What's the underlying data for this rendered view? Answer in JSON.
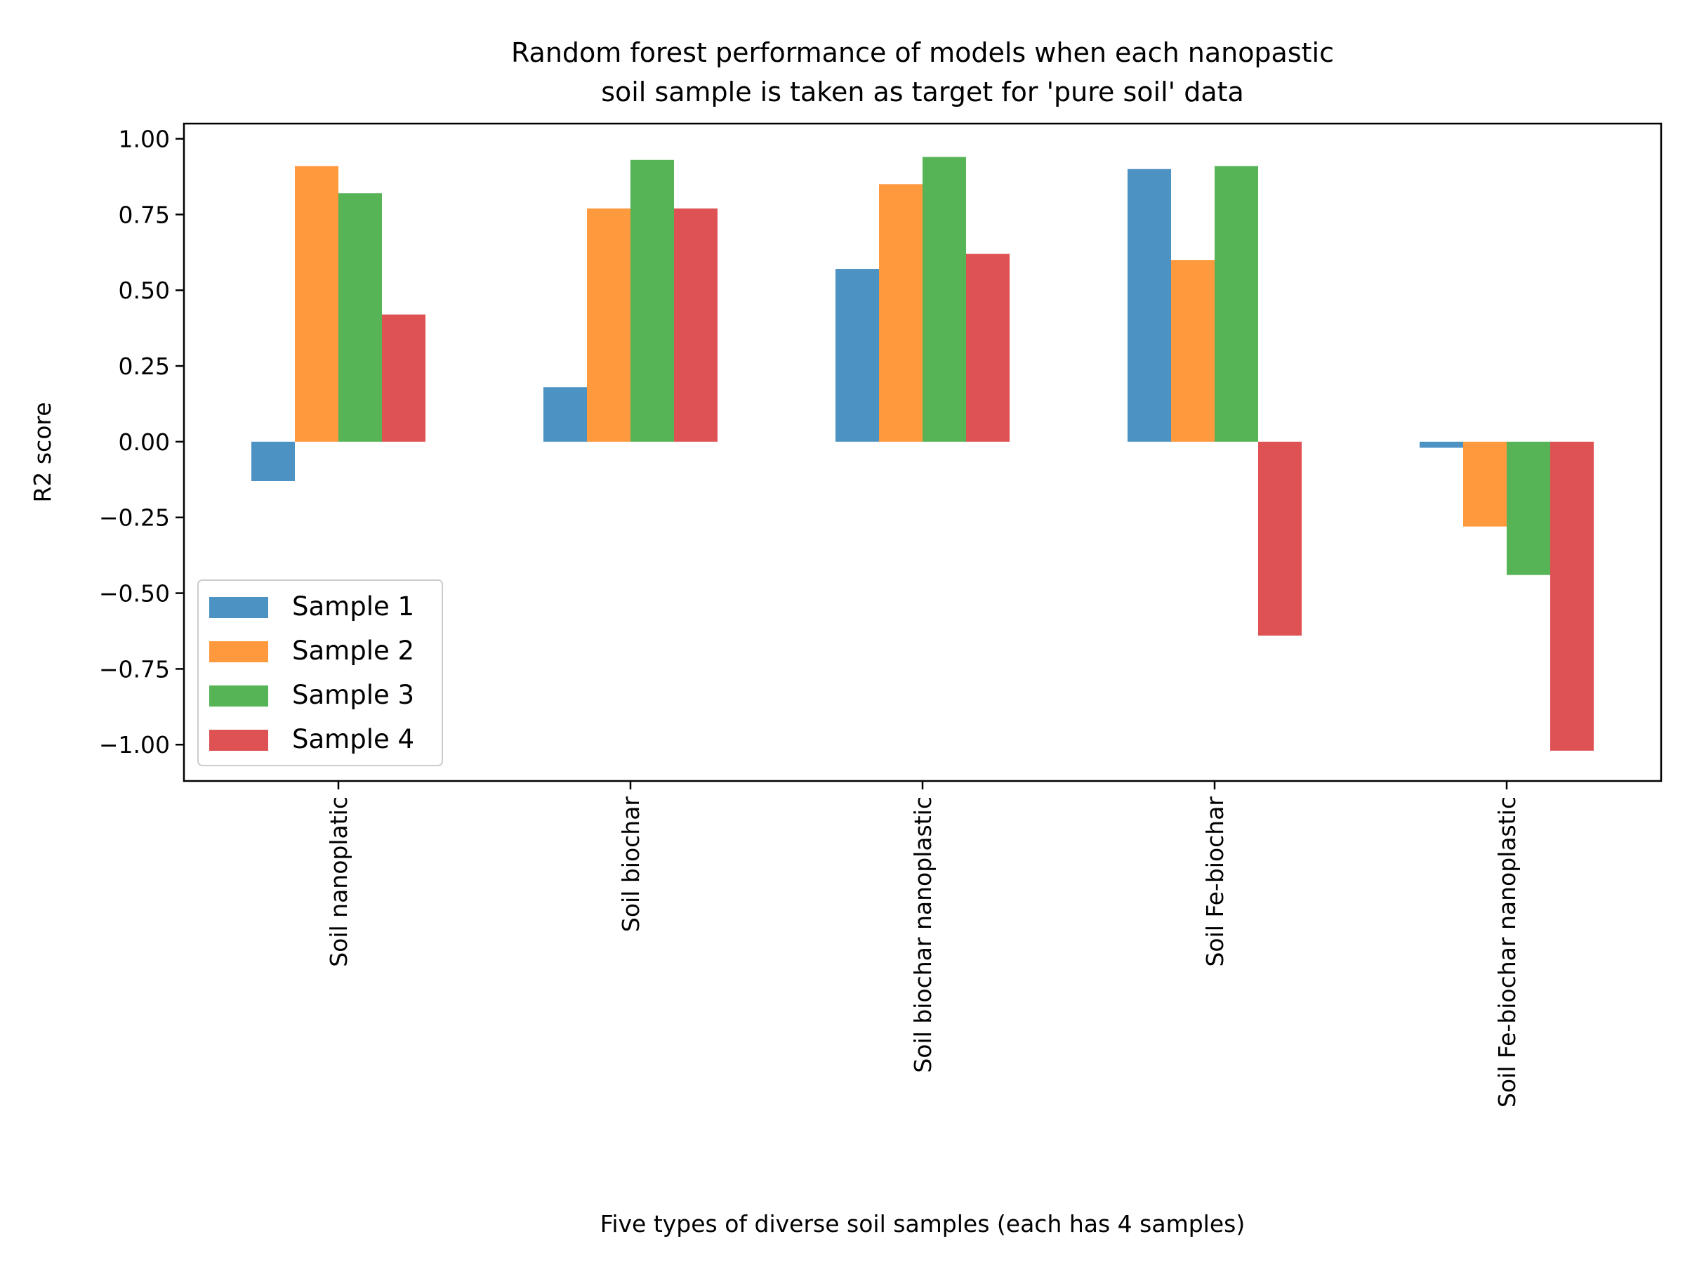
{
  "chart_data": {
    "type": "bar",
    "title": "Random forest performance of models when each nanopastic soil sample is taken as target for 'pure soil' data",
    "title_lines": [
      "Random forest performance of models when each nanopastic",
      "soil sample is taken as target for 'pure soil' data"
    ],
    "xlabel": "Five types of diverse soil samples (each has 4 samples)",
    "ylabel": "R2 score",
    "categories": [
      "Soil nanoplatic",
      "Soil biochar",
      "Soil biochar nanoplastic",
      "Soil Fe-biochar",
      "Soil Fe-biochar nanoplastic"
    ],
    "series": [
      {
        "name": "Sample 1",
        "color": "#1f77b4",
        "values": [
          -0.13,
          0.18,
          0.57,
          0.9,
          -0.02
        ]
      },
      {
        "name": "Sample 2",
        "color": "#ff7f0e",
        "values": [
          0.91,
          0.77,
          0.85,
          0.6,
          -0.28
        ]
      },
      {
        "name": "Sample 3",
        "color": "#2ca02c",
        "values": [
          0.82,
          0.93,
          0.94,
          0.91,
          -0.44
        ]
      },
      {
        "name": "Sample 4",
        "color": "#d62728",
        "values": [
          0.42,
          0.77,
          0.62,
          -0.64,
          -1.02
        ]
      }
    ],
    "bar_opacity": 0.8,
    "ylim": [
      -1.12,
      1.05
    ],
    "yticks": [
      -1.0,
      -0.75,
      -0.5,
      -0.25,
      0.0,
      0.25,
      0.5,
      0.75,
      1.0
    ],
    "ytick_labels": [
      "−1.00",
      "−0.75",
      "−0.50",
      "−0.25",
      "0.00",
      "0.25",
      "0.50",
      "0.75",
      "1.00"
    ],
    "xtick_rotation": "vertical",
    "grid": false,
    "legend_position": "lower-left"
  }
}
